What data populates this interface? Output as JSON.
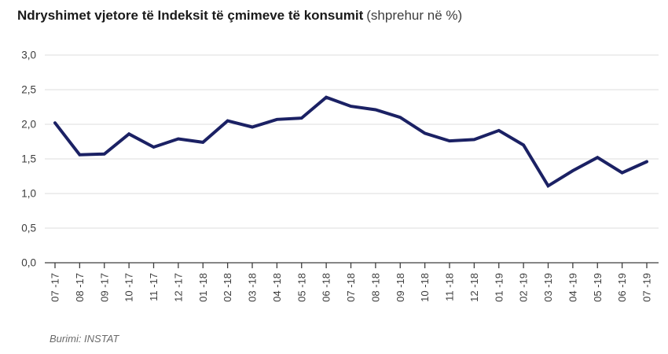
{
  "header": {
    "title": "Ndryshimet vjetore të Indeksit të çmimeve të konsumit",
    "subtitle": "(shprehur në %)"
  },
  "footer": {
    "source": "Burimi: INSTAT"
  },
  "chart_data": {
    "type": "line",
    "title": "Ndryshimet vjetore të Indeksit të çmimeve të konsumit (shprehur në %)",
    "xlabel": "",
    "ylabel": "",
    "ylim": [
      0,
      3
    ],
    "ytick_step": 0.5,
    "ytick_labels": [
      "0,0",
      "0,5",
      "1,0",
      "1,5",
      "2,0",
      "2,5",
      "3,0"
    ],
    "grid": "horizontal",
    "legend": "none",
    "categories": [
      "07 -17",
      "08 -17",
      "09 -17",
      "10 -17",
      "11 -17",
      "12 -17",
      "01 -18",
      "02 -18",
      "03 -18",
      "04 -18",
      "05 -18",
      "06 -18",
      "07 -18",
      "08 -18",
      "09 -18",
      "10 -18",
      "11 -18",
      "12 -18",
      "01 -19",
      "02 -19",
      "03 -19",
      "04 -19",
      "05 -19",
      "06 -19",
      "07 -19"
    ],
    "values": [
      2.02,
      1.56,
      1.57,
      1.86,
      1.67,
      1.79,
      1.74,
      2.05,
      1.96,
      2.07,
      2.09,
      2.39,
      2.26,
      2.21,
      2.1,
      1.87,
      1.76,
      1.78,
      1.91,
      1.7,
      1.11,
      1.33,
      1.52,
      1.3,
      1.46
    ],
    "colors": {
      "line": "#1b2164",
      "gridline": "#e3e3e3",
      "axis": "#3d3d3d",
      "tick_label": "#3d3d3d"
    }
  }
}
